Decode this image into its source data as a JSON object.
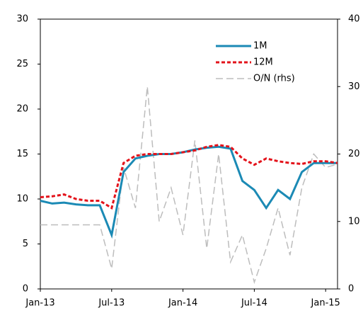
{
  "chart_data": {
    "type": "line",
    "x": [
      "2013-01",
      "2013-02",
      "2013-03",
      "2013-04",
      "2013-05",
      "2013-06",
      "2013-07",
      "2013-08",
      "2013-09",
      "2013-10",
      "2013-11",
      "2013-12",
      "2014-01",
      "2014-02",
      "2014-03",
      "2014-04",
      "2014-05",
      "2014-06",
      "2014-07",
      "2014-08",
      "2014-09",
      "2014-10",
      "2014-11",
      "2014-12",
      "2015-01",
      "2015-02"
    ],
    "series": [
      {
        "name": "1M",
        "color": "#1b8ab5",
        "dash": "none",
        "width": 3,
        "values": [
          9.8,
          9.5,
          9.6,
          9.4,
          9.3,
          9.3,
          6,
          13,
          14.5,
          14.8,
          15,
          15,
          15.2,
          15.5,
          15.7,
          15.8,
          15.6,
          12,
          11,
          9,
          11,
          10,
          13,
          14,
          14,
          14
        ]
      },
      {
        "name": "12M",
        "color": "#e3131b",
        "dash": "5 3",
        "width": 3,
        "values": [
          10.2,
          10.3,
          10.5,
          10,
          9.8,
          9.8,
          9,
          14,
          14.8,
          15,
          15,
          15,
          15.2,
          15.4,
          15.8,
          16,
          15.8,
          14.5,
          13.8,
          14.5,
          14.2,
          14,
          13.9,
          14.2,
          14.2,
          14
        ]
      },
      {
        "name": "O/N (rhs)",
        "color": "#bdbdbd",
        "dash": "10 5",
        "width": 1.5,
        "axis": "y2",
        "values": [
          9.5,
          9.5,
          9.5,
          9.5,
          9.5,
          9.5,
          3,
          18,
          12,
          30,
          10,
          15,
          8,
          22,
          6,
          20,
          4,
          8,
          1,
          6,
          12,
          5,
          15,
          20,
          18,
          18.5
        ]
      }
    ],
    "xlim": [
      "2013-01",
      "2015-02"
    ],
    "xticks": [
      {
        "value": "2013-01",
        "label": "Jan-13"
      },
      {
        "value": "2013-07",
        "label": "Jul-13"
      },
      {
        "value": "2014-01",
        "label": "Jan-14"
      },
      {
        "value": "2014-07",
        "label": "Jul-14"
      },
      {
        "value": "2015-01",
        "label": "Jan-15"
      }
    ],
    "ylim": [
      0,
      30
    ],
    "yticks": [
      0,
      5,
      10,
      15,
      20,
      25,
      30
    ],
    "y2lim": [
      0,
      40
    ],
    "y2ticks": [
      0,
      10,
      20,
      30,
      40
    ]
  }
}
